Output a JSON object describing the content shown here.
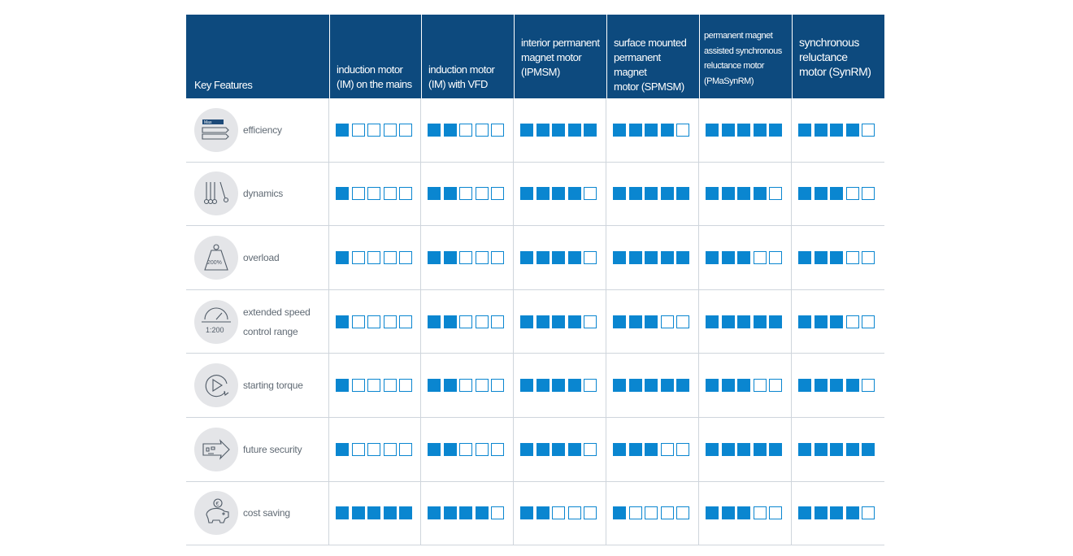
{
  "header": {
    "key_features": "Key Features",
    "columns": [
      [
        "induction motor",
        "(IM) on the mains"
      ],
      [
        "induction motor",
        "(IM) with VFD"
      ],
      [
        "interior permanent",
        "magnet motor",
        "(IPMSM)"
      ],
      [
        "surface mounted",
        "permanent magnet",
        "motor (SPMSM)"
      ],
      [
        "permanent magnet",
        "assisted synchronous",
        "reluctance motor",
        "(PMaSynRM)"
      ],
      [
        "synchronous",
        "reluctance",
        "motor (SynRM)"
      ]
    ]
  },
  "rows": [
    {
      "label": [
        "efficiency"
      ],
      "icon": "max-efficiency-icon",
      "badge": "Max",
      "ratings": [
        1,
        2,
        5,
        4,
        5,
        4
      ]
    },
    {
      "label": [
        "dynamics"
      ],
      "icon": "pendulum-icon",
      "ratings": [
        1,
        2,
        4,
        5,
        4,
        3
      ]
    },
    {
      "label": [
        "overload"
      ],
      "icon": "weight-icon",
      "badge": "200%",
      "ratings": [
        1,
        2,
        4,
        5,
        3,
        3
      ]
    },
    {
      "label": [
        "extended speed",
        "control range"
      ],
      "icon": "speedometer-icon",
      "badge": "1:200",
      "ratings": [
        1,
        2,
        4,
        3,
        5,
        3
      ]
    },
    {
      "label": [
        "starting torque"
      ],
      "icon": "play-rotate-icon",
      "ratings": [
        1,
        2,
        4,
        5,
        3,
        4
      ]
    },
    {
      "label": [
        "future security"
      ],
      "icon": "future-arrow-icon",
      "ratings": [
        1,
        2,
        4,
        3,
        5,
        5
      ]
    },
    {
      "label": [
        "cost saving"
      ],
      "icon": "piggy-bank-icon",
      "badge": "€",
      "ratings": [
        5,
        4,
        2,
        1,
        3,
        4
      ]
    }
  ],
  "scale_max": 5,
  "colors": {
    "header_bg": "#0d4a7e",
    "accent": "#0a86d0",
    "icon_bg": "#e4e5e8",
    "label": "#606a74"
  }
}
